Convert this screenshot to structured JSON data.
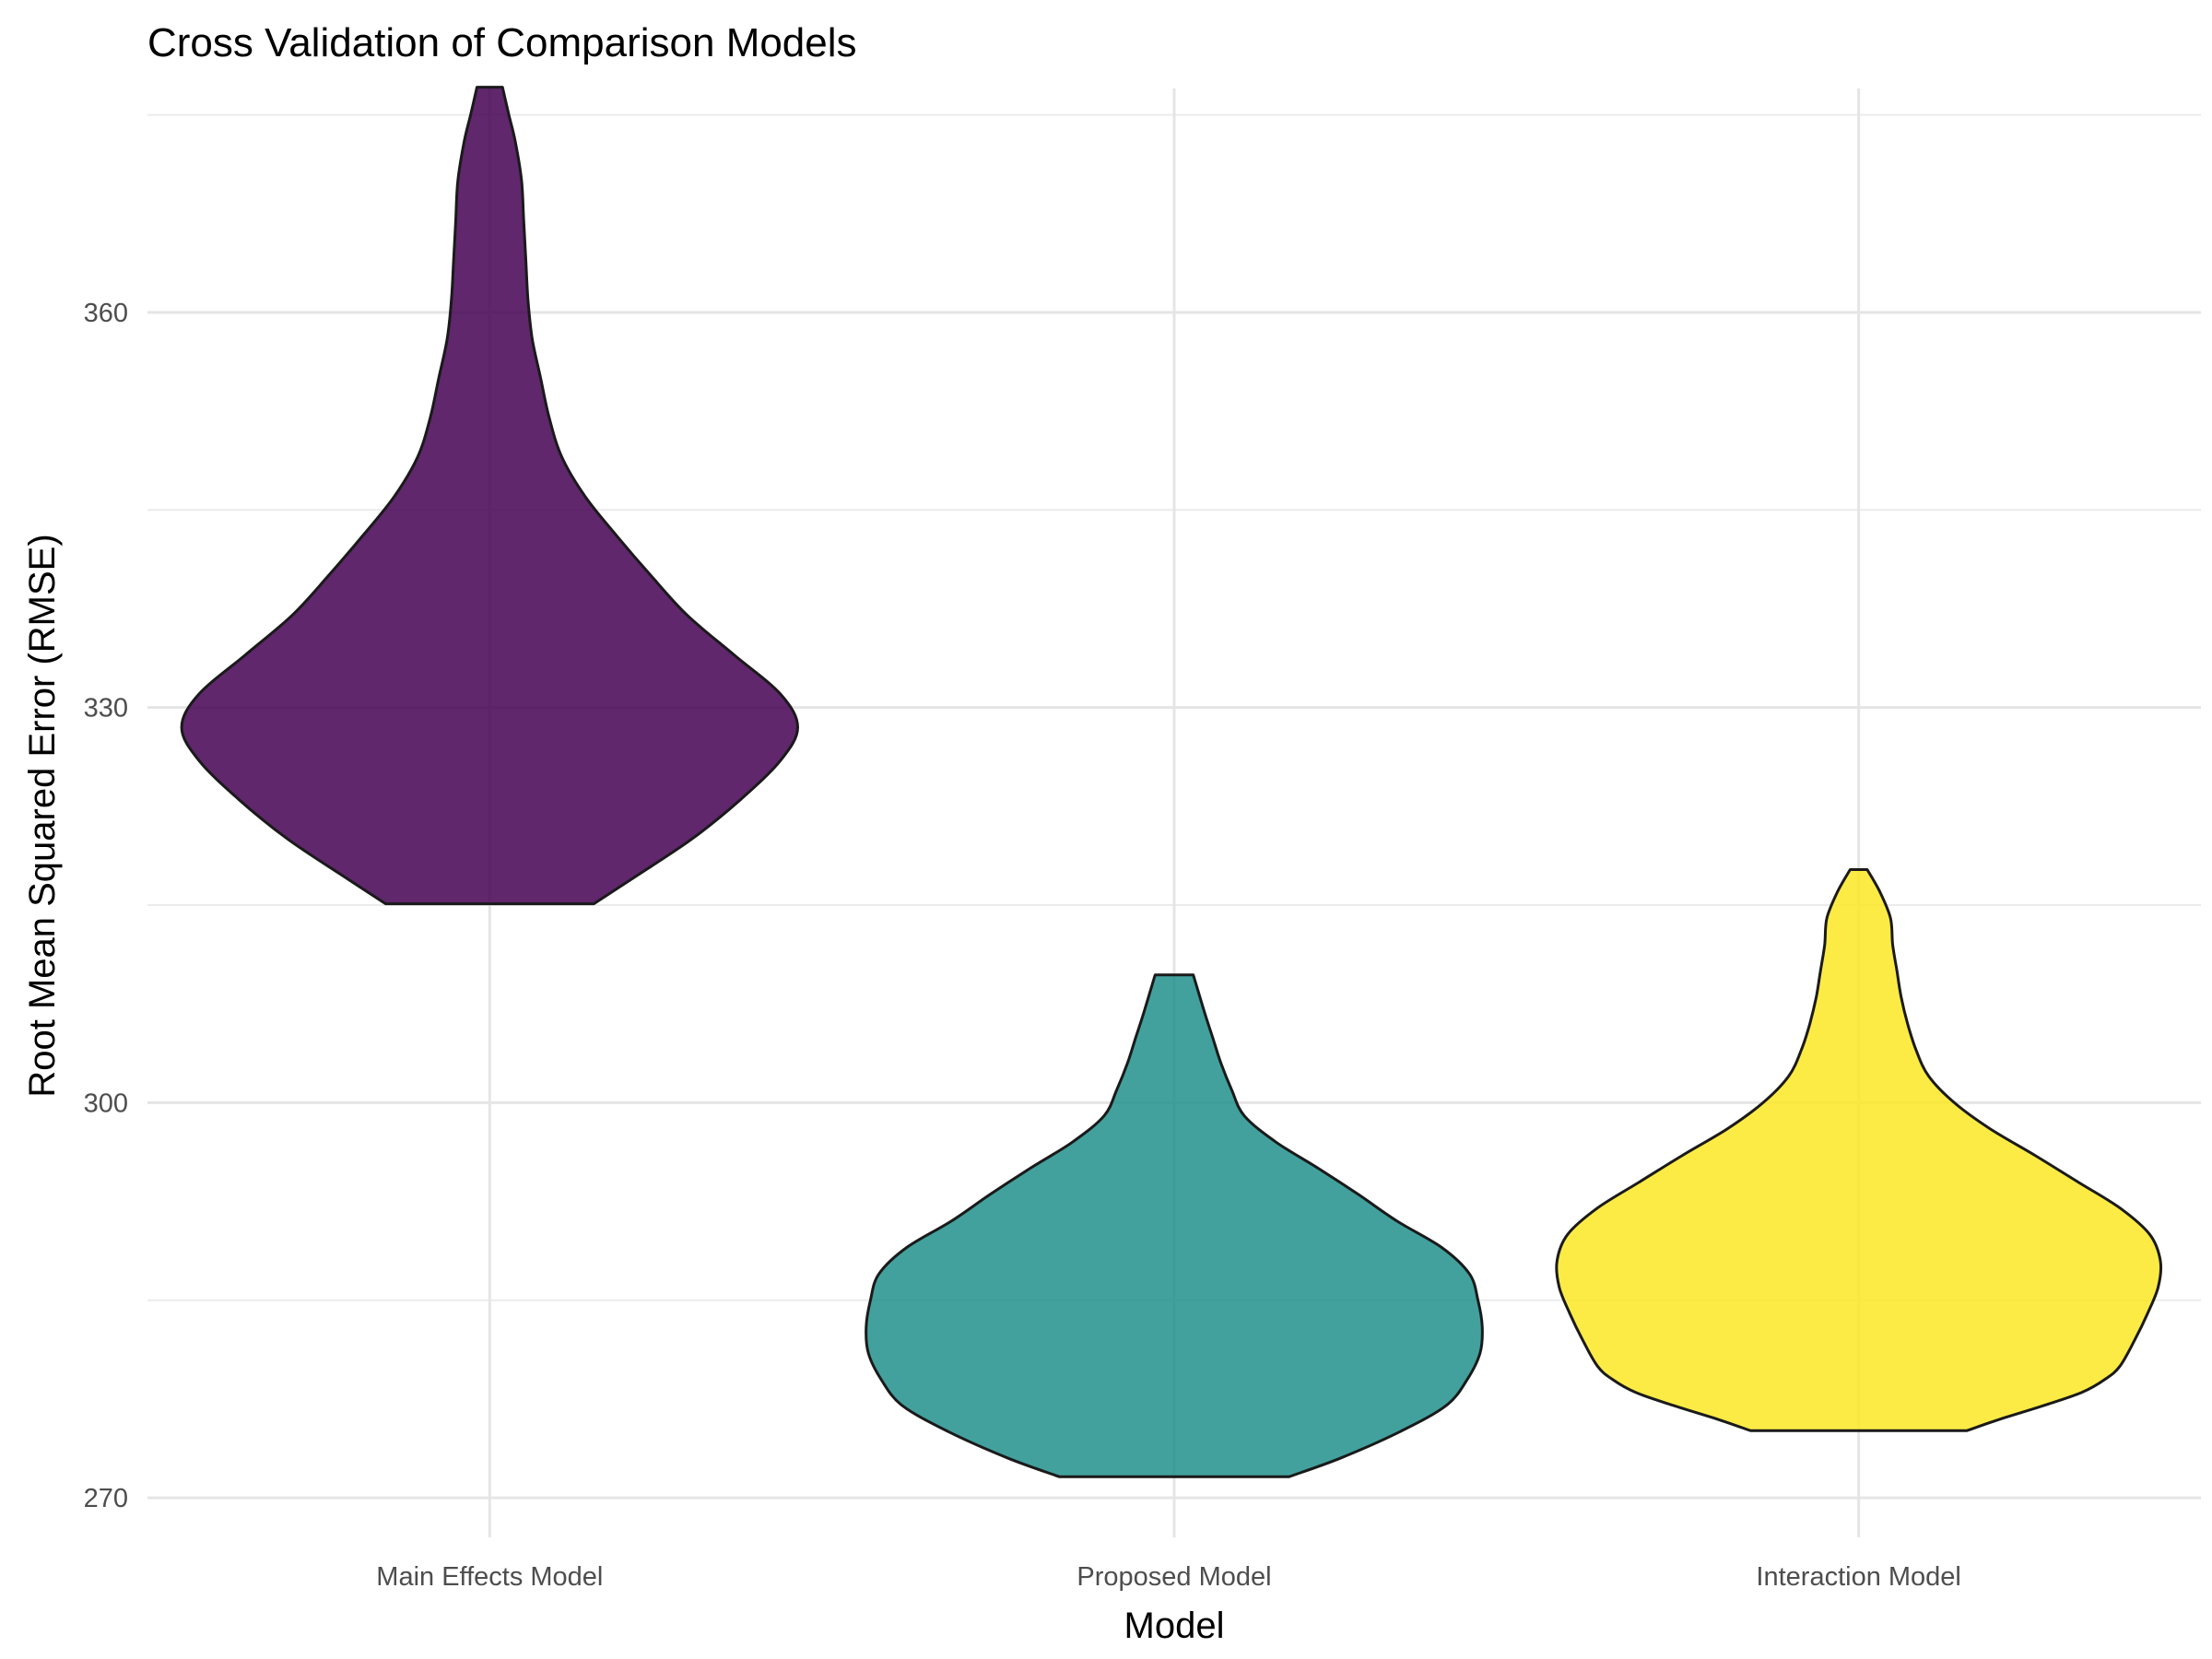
{
  "chart_data": {
    "type": "violin",
    "title": "Cross Validation of Comparison Models",
    "xlabel": "Model",
    "ylabel": "Root Mean Squared Error (RMSE)",
    "categories": [
      "Main Effects Model",
      "Proposed Model",
      "Interaction Model"
    ],
    "ylim": [
      267,
      377
    ],
    "yticks": [
      270,
      300,
      330,
      360
    ],
    "grid": true,
    "legend": "none",
    "fill_opacity": 0.85,
    "series": [
      {
        "category": "Main Effects Model",
        "color": "#440154",
        "range": [
          315.1,
          377.1
        ],
        "density": [
          [
            315.1,
            0.49
          ],
          [
            317,
            0.67
          ],
          [
            320,
            0.95
          ],
          [
            323,
            1.18
          ],
          [
            326,
            1.37
          ],
          [
            328.5,
            1.45
          ],
          [
            331,
            1.37
          ],
          [
            334,
            1.15
          ],
          [
            337,
            0.93
          ],
          [
            340,
            0.76
          ],
          [
            343,
            0.6
          ],
          [
            346,
            0.45
          ],
          [
            349,
            0.34
          ],
          [
            352,
            0.28
          ],
          [
            355,
            0.24
          ],
          [
            358,
            0.2
          ],
          [
            361,
            0.18
          ],
          [
            364,
            0.17
          ],
          [
            367,
            0.16
          ],
          [
            370,
            0.15
          ],
          [
            373,
            0.12
          ],
          [
            375,
            0.09
          ],
          [
            377.1,
            0.06
          ]
        ]
      },
      {
        "category": "Proposed Model",
        "color": "#21908C",
        "range": [
          271.6,
          309.7
        ],
        "density": [
          [
            271.6,
            0.54
          ],
          [
            273,
            0.78
          ],
          [
            275,
            1.06
          ],
          [
            277,
            1.28
          ],
          [
            279,
            1.38
          ],
          [
            281,
            1.44
          ],
          [
            283,
            1.45
          ],
          [
            285,
            1.43
          ],
          [
            287,
            1.39
          ],
          [
            289,
            1.26
          ],
          [
            291,
            1.05
          ],
          [
            293,
            0.87
          ],
          [
            295,
            0.68
          ],
          [
            297,
            0.48
          ],
          [
            299,
            0.33
          ],
          [
            301,
            0.27
          ],
          [
            303,
            0.22
          ],
          [
            305,
            0.18
          ],
          [
            307,
            0.14
          ],
          [
            309.7,
            0.09
          ]
        ]
      },
      {
        "category": "Interaction Model",
        "color": "#FDE725",
        "range": [
          275.1,
          317.7
        ],
        "density": [
          [
            275.1,
            0.51
          ],
          [
            276,
            0.67
          ],
          [
            277,
            0.87
          ],
          [
            278,
            1.05
          ],
          [
            279,
            1.16
          ],
          [
            280,
            1.23
          ],
          [
            282,
            1.3
          ],
          [
            284,
            1.36
          ],
          [
            286,
            1.41
          ],
          [
            288,
            1.42
          ],
          [
            290,
            1.37
          ],
          [
            292,
            1.23
          ],
          [
            294,
            1.03
          ],
          [
            296,
            0.83
          ],
          [
            298,
            0.62
          ],
          [
            300,
            0.45
          ],
          [
            302,
            0.33
          ],
          [
            304,
            0.27
          ],
          [
            306,
            0.23
          ],
          [
            308,
            0.2
          ],
          [
            310,
            0.18
          ],
          [
            312,
            0.16
          ],
          [
            314,
            0.15
          ],
          [
            316,
            0.1
          ],
          [
            317.7,
            0.04
          ]
        ]
      }
    ]
  }
}
